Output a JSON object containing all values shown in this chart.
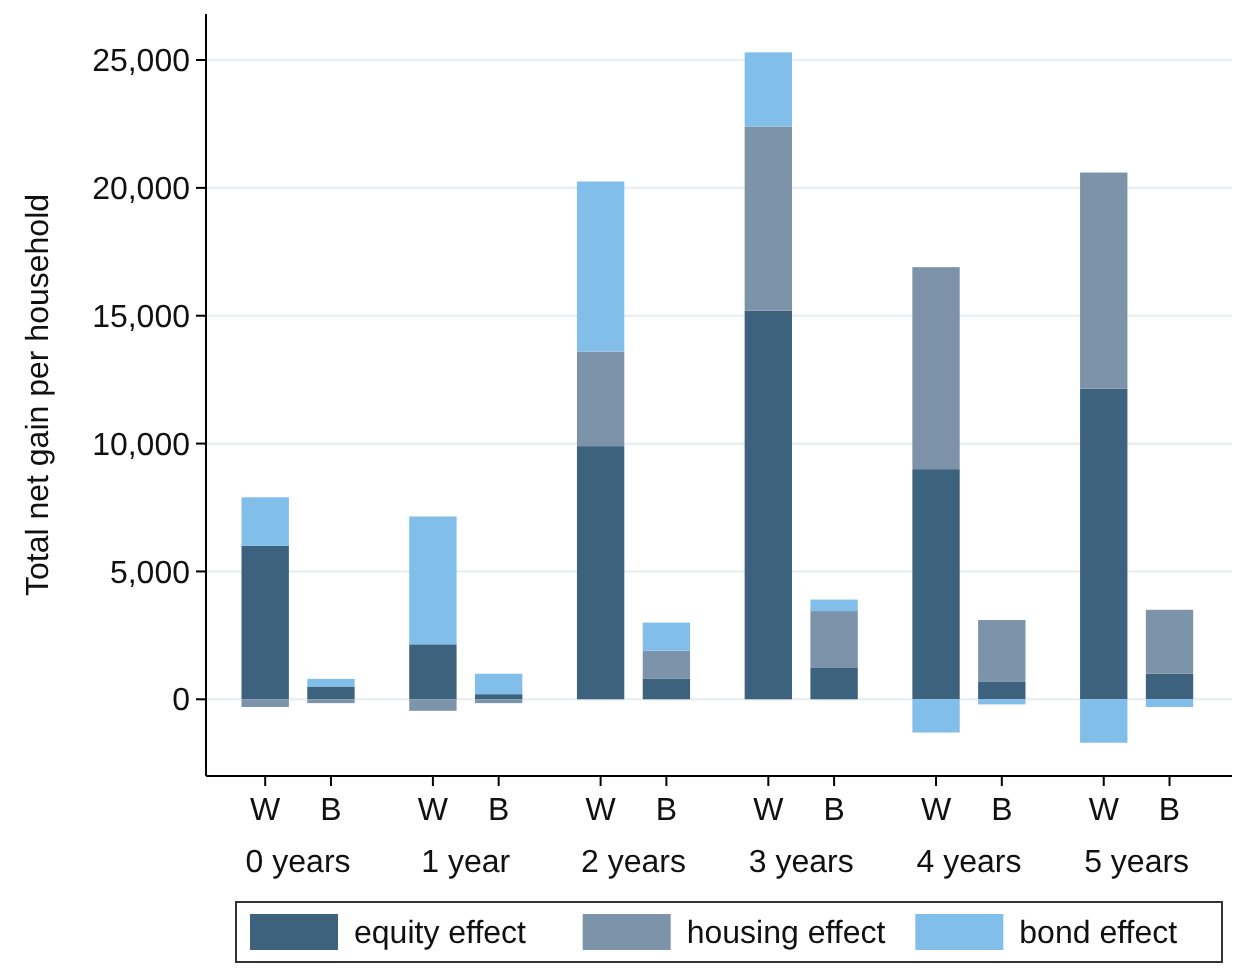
{
  "chart_data": {
    "type": "bar",
    "stacked": true,
    "ylabel": "Total net gain per household",
    "categories": [
      "W",
      "B",
      "W",
      "B",
      "W",
      "B",
      "W",
      "B",
      "W",
      "B",
      "W",
      "B"
    ],
    "annotations": [
      "0 years",
      "1 year",
      "2 years",
      "3 years",
      "4 years",
      "5 years"
    ],
    "series": [
      {
        "name": "equity effect",
        "color": "#3d627d",
        "values": [
          6000,
          500,
          2150,
          200,
          9900,
          800,
          15200,
          1250,
          9000,
          700,
          12150,
          1000
        ]
      },
      {
        "name": "housing effect",
        "color": "#7c93aa",
        "values": [
          -300,
          -150,
          -450,
          -150,
          3700,
          1100,
          7200,
          2200,
          7900,
          2400,
          8450,
          2500
        ]
      },
      {
        "name": "bond effect",
        "color": "#82beea",
        "values": [
          1900,
          300,
          5000,
          800,
          6650,
          1100,
          2900,
          450,
          -1300,
          -200,
          -1700,
          -300
        ]
      }
    ],
    "ylim": [
      -3000,
      26800
    ],
    "yticks": [
      {
        "value": 0,
        "label": "0"
      },
      {
        "value": 5000,
        "label": "5,000"
      },
      {
        "value": 10000,
        "label": "10,000"
      },
      {
        "value": 15000,
        "label": "15,000"
      },
      {
        "value": 20000,
        "label": "20,000"
      },
      {
        "value": 25000,
        "label": "25,000"
      }
    ],
    "grid": "y",
    "legend": "bottom"
  }
}
